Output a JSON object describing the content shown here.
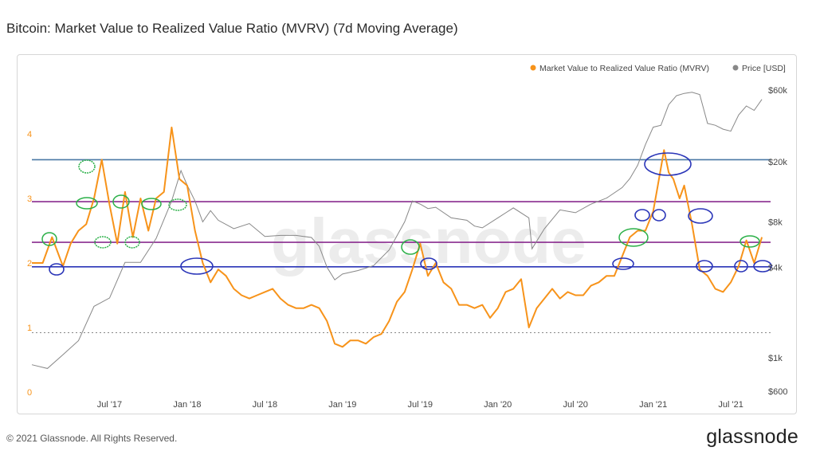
{
  "title": "Bitcoin: Market Value to Realized Value Ratio (MVRV) (7d Moving Average)",
  "footer": "© 2021 Glassnode. All Rights Reserved.",
  "brand": "glassnode",
  "watermark": "glassnode",
  "colors": {
    "mvrv": "#f7931a",
    "price": "#888888",
    "level_blue": "#4a78a5",
    "level_purple": "#8a2b8f",
    "marker_blue": "#2a35b8",
    "marker_green": "#2bb048"
  },
  "chart_data": {
    "type": "line",
    "title": "Bitcoin: Market Value to Realized Value Ratio (MVRV) (7d Moving Average)",
    "legend": [
      {
        "name": "Market Value to Realized Value Ratio (MVRV)",
        "color": "#f7931a"
      },
      {
        "name": "Price [USD]",
        "color": "#888888"
      }
    ],
    "legend_position": "top-right",
    "x_ticks": [
      "Jul '17",
      "Jan '18",
      "Jul '18",
      "Jan '19",
      "Jul '19",
      "Jan '20",
      "Jul '20",
      "Jan '21",
      "Jul '21"
    ],
    "x_range": [
      "2017-01-01",
      "2021-09-15"
    ],
    "left_axis": {
      "ticks": [
        "0",
        "1",
        "2",
        "3",
        "4"
      ],
      "range": [
        0,
        4.6
      ]
    },
    "right_axis": {
      "scale": "log",
      "ticks": [
        "$600",
        "$1k",
        "$4k",
        "$8k",
        "$20k",
        "$60k"
      ],
      "values": [
        600,
        1000,
        4000,
        8000,
        20000,
        60000
      ]
    },
    "reference_lines": [
      {
        "value": 3.6,
        "color": "#4a78a5"
      },
      {
        "value": 2.95,
        "color": "#8a2b8f"
      },
      {
        "value": 2.32,
        "color": "#8a2b8f"
      },
      {
        "value": 1.94,
        "color": "#2a35b8"
      },
      {
        "value": 0.92,
        "style": "dotted",
        "color": "#888888"
      }
    ],
    "series": [
      {
        "name": "Market Value to Realized Value Ratio (MVRV)",
        "axis": "left",
        "dates": [
          2017.0,
          2017.07,
          2017.13,
          2017.2,
          2017.25,
          2017.3,
          2017.35,
          2017.4,
          2017.45,
          2017.5,
          2017.55,
          2017.6,
          2017.65,
          2017.7,
          2017.75,
          2017.8,
          2017.85,
          2017.9,
          2017.95,
          2018.0,
          2018.05,
          2018.1,
          2018.15,
          2018.2,
          2018.25,
          2018.3,
          2018.35,
          2018.4,
          2018.45,
          2018.5,
          2018.55,
          2018.6,
          2018.65,
          2018.7,
          2018.75,
          2018.8,
          2018.85,
          2018.9,
          2018.95,
          2019.0,
          2019.05,
          2019.1,
          2019.15,
          2019.2,
          2019.25,
          2019.3,
          2019.35,
          2019.4,
          2019.45,
          2019.5,
          2019.55,
          2019.6,
          2019.65,
          2019.7,
          2019.75,
          2019.8,
          2019.85,
          2019.9,
          2019.95,
          2020.0,
          2020.05,
          2020.1,
          2020.15,
          2020.2,
          2020.25,
          2020.3,
          2020.35,
          2020.4,
          2020.45,
          2020.5,
          2020.55,
          2020.6,
          2020.65,
          2020.7,
          2020.75,
          2020.8,
          2020.85,
          2020.9,
          2020.95,
          2021.0,
          2021.03,
          2021.07,
          2021.1,
          2021.13,
          2021.17,
          2021.2,
          2021.25,
          2021.3,
          2021.35,
          2021.4,
          2021.45,
          2021.5,
          2021.55,
          2021.6,
          2021.65,
          2021.7
        ],
        "values": [
          2.0,
          2.0,
          2.4,
          1.95,
          2.3,
          2.5,
          2.6,
          3.0,
          3.6,
          2.9,
          2.3,
          3.1,
          2.4,
          3.0,
          2.5,
          3.0,
          3.1,
          4.1,
          3.3,
          3.2,
          2.5,
          2.0,
          1.7,
          1.9,
          1.8,
          1.6,
          1.5,
          1.45,
          1.5,
          1.55,
          1.6,
          1.45,
          1.35,
          1.3,
          1.3,
          1.35,
          1.3,
          1.1,
          0.75,
          0.7,
          0.8,
          0.8,
          0.75,
          0.85,
          0.9,
          1.1,
          1.4,
          1.55,
          1.9,
          2.3,
          1.8,
          2.0,
          1.7,
          1.6,
          1.35,
          1.35,
          1.3,
          1.35,
          1.15,
          1.3,
          1.55,
          1.6,
          1.75,
          1.0,
          1.3,
          1.45,
          1.6,
          1.45,
          1.55,
          1.5,
          1.5,
          1.65,
          1.7,
          1.8,
          1.8,
          2.1,
          2.4,
          2.5,
          2.5,
          2.8,
          3.2,
          3.75,
          3.4,
          3.3,
          3.0,
          3.2,
          2.6,
          1.9,
          1.8,
          1.6,
          1.55,
          1.7,
          1.95,
          2.35,
          2.0,
          2.4
        ]
      },
      {
        "name": "Price [USD]",
        "axis": "right",
        "dates": [
          2017.0,
          2017.1,
          2017.2,
          2017.3,
          2017.4,
          2017.5,
          2017.6,
          2017.7,
          2017.8,
          2017.9,
          2017.96,
          2018.0,
          2018.05,
          2018.1,
          2018.15,
          2018.2,
          2018.3,
          2018.4,
          2018.5,
          2018.6,
          2018.7,
          2018.8,
          2018.85,
          2018.9,
          2018.95,
          2019.0,
          2019.1,
          2019.2,
          2019.3,
          2019.4,
          2019.45,
          2019.5,
          2019.55,
          2019.6,
          2019.7,
          2019.8,
          2019.85,
          2019.9,
          2020.0,
          2020.1,
          2020.2,
          2020.22,
          2020.3,
          2020.4,
          2020.5,
          2020.6,
          2020.7,
          2020.8,
          2020.85,
          2020.9,
          2020.95,
          2021.0,
          2021.05,
          2021.1,
          2021.15,
          2021.2,
          2021.25,
          2021.3,
          2021.35,
          2021.4,
          2021.45,
          2021.5,
          2021.55,
          2021.6,
          2021.65,
          2021.7
        ],
        "values": [
          900,
          850,
          1050,
          1300,
          2200,
          2500,
          4300,
          4300,
          6200,
          11000,
          17500,
          14000,
          11000,
          8000,
          9500,
          8200,
          7200,
          7800,
          6400,
          6500,
          6500,
          6300,
          5500,
          4000,
          3300,
          3600,
          3800,
          4100,
          5200,
          8000,
          11000,
          10500,
          9800,
          10000,
          8500,
          8200,
          7500,
          7300,
          8500,
          9900,
          8500,
          5300,
          7200,
          9600,
          9200,
          10500,
          11500,
          13500,
          15500,
          19000,
          26000,
          34000,
          35000,
          48000,
          55000,
          57000,
          58000,
          56000,
          36000,
          35000,
          33000,
          32000,
          41000,
          47000,
          44000,
          52000
        ]
      }
    ],
    "annotations": {
      "blue_circles_at": [
        "Feb '17",
        "Feb '18",
        "Aug '19",
        "Nov '20",
        "Feb '21 peak",
        "Jan '21",
        "Jan '21",
        "May '21",
        "May '21",
        "Aug '21",
        "Sep '21"
      ],
      "green_circles_at": [
        "Feb '17",
        "Jun '17",
        "Jul '17",
        "Aug '17",
        "Sep '17",
        "Nov '17",
        "Dec '17",
        "Jan '18",
        "Jul '19",
        "Dec '20",
        "Aug '21"
      ]
    }
  }
}
